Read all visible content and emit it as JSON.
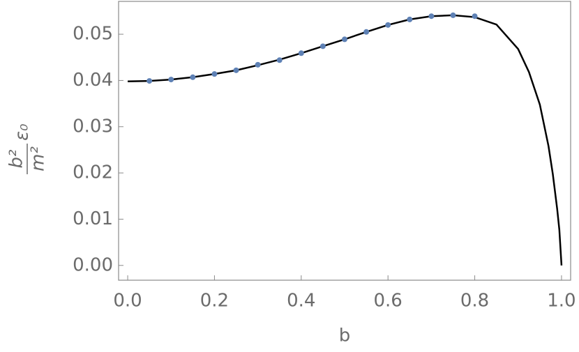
{
  "chart_data": {
    "type": "line-scatter",
    "xlabel": "b",
    "ylabel": {
      "numerator": "b²",
      "denominator": "m²",
      "factor": "ε₀"
    },
    "xlim": [
      -0.021,
      1.021
    ],
    "ylim": [
      -0.0032,
      0.0571
    ],
    "xticks": [
      {
        "value": 0,
        "label": "0.0"
      },
      0.2,
      0.4,
      0.6,
      0.8,
      {
        "value": 1,
        "label": "1.0"
      }
    ],
    "yticks": [
      {
        "value": 0,
        "label": "0.00"
      },
      0.01,
      0.02,
      0.03,
      0.04,
      0.05
    ],
    "series": [
      {
        "kind": "line",
        "color": "#000000",
        "x": [
          0,
          0.05,
          0.1,
          0.15,
          0.2,
          0.25,
          0.3,
          0.35,
          0.4,
          0.45,
          0.5,
          0.55,
          0.6,
          0.65,
          0.7,
          0.75,
          0.8,
          0.85,
          0.9,
          0.925,
          0.95,
          0.97,
          0.98,
          0.99,
          0.995,
          1.0
        ],
        "values": [
          0.0398,
          0.0399,
          0.0402,
          0.0407,
          0.0414,
          0.0422,
          0.0433,
          0.0445,
          0.0459,
          0.0474,
          0.0489,
          0.0505,
          0.052,
          0.0532,
          0.0539,
          0.0541,
          0.0537,
          0.0521,
          0.0468,
          0.0418,
          0.0348,
          0.0258,
          0.0197,
          0.0122,
          0.0077,
          0
        ]
      },
      {
        "kind": "scatter",
        "color": "#5e81b5",
        "x": [
          0.05,
          0.1,
          0.15,
          0.2,
          0.25,
          0.3,
          0.35,
          0.4,
          0.45,
          0.5,
          0.55,
          0.6,
          0.65,
          0.7,
          0.75,
          0.8
        ],
        "values": [
          0.0399,
          0.0402,
          0.0407,
          0.0414,
          0.0422,
          0.0434,
          0.0444,
          0.0459,
          0.0474,
          0.0489,
          0.0505,
          0.052,
          0.0532,
          0.0539,
          0.0541,
          0.0539
        ]
      }
    ]
  }
}
